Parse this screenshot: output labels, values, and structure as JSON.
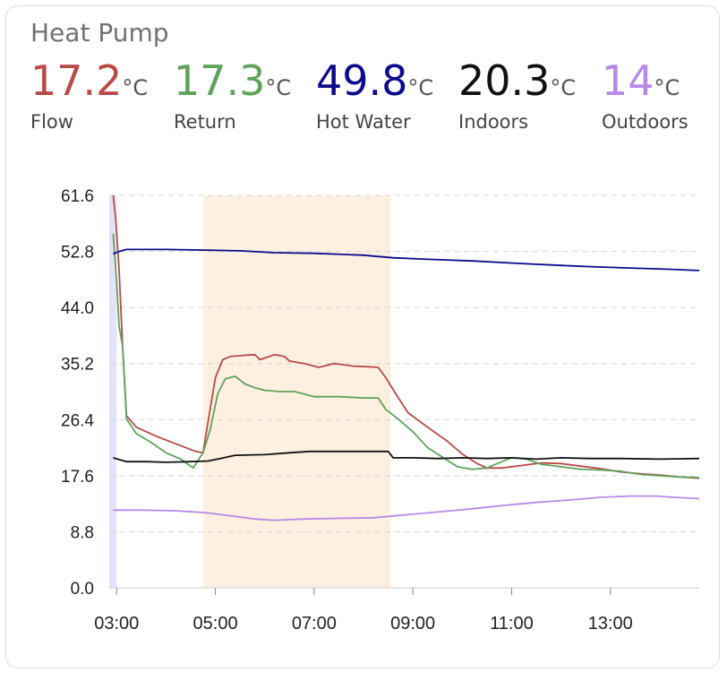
{
  "card": {
    "title": "Heat Pump"
  },
  "readings": [
    {
      "value": "17.2",
      "unit": "°C",
      "label": "Flow",
      "color": "#b94a48"
    },
    {
      "value": "17.3",
      "unit": "°C",
      "label": "Return",
      "color": "#5fa35b"
    },
    {
      "value": "49.8",
      "unit": "°C",
      "label": "Hot Water",
      "color": "#0b0b8c"
    },
    {
      "value": "20.3",
      "unit": "°C",
      "label": "Indoors",
      "color": "#111111"
    },
    {
      "value": "14",
      "unit": "°C",
      "label": "Outdoors",
      "color": "#b889ea"
    }
  ],
  "chart_data": {
    "type": "line",
    "xlabel": "",
    "ylabel": "",
    "x_range_hours": [
      2.85,
      14.8
    ],
    "ylim": [
      0,
      61.6
    ],
    "y_ticks": [
      "0.0",
      "8.8",
      "17.6",
      "26.4",
      "35.2",
      "44.0",
      "52.8",
      "61.6"
    ],
    "x_ticks": [
      {
        "label": "03:00",
        "hour": 3
      },
      {
        "label": "05:00",
        "hour": 5
      },
      {
        "label": "07:00",
        "hour": 7
      },
      {
        "label": "09:00",
        "hour": 9
      },
      {
        "label": "11:00",
        "hour": 11
      },
      {
        "label": "13:00",
        "hour": 13
      }
    ],
    "grid": "horizontal-dashed",
    "bands": [
      {
        "from_hour": 2.85,
        "to_hour": 3.0,
        "color": "#e3e3fb"
      },
      {
        "from_hour": 4.75,
        "to_hour": 8.55,
        "color": "#fdf0e1"
      }
    ],
    "series": [
      {
        "name": "Flow",
        "color": "#b94a48",
        "points": [
          [
            2.93,
            61.6
          ],
          [
            2.98,
            58
          ],
          [
            3.05,
            50
          ],
          [
            3.12,
            38
          ],
          [
            3.2,
            27
          ],
          [
            3.4,
            25.2
          ],
          [
            3.8,
            23.8
          ],
          [
            4.2,
            22.6
          ],
          [
            4.6,
            21.4
          ],
          [
            4.75,
            21.2
          ],
          [
            4.85,
            26
          ],
          [
            5.0,
            33
          ],
          [
            5.15,
            35.8
          ],
          [
            5.3,
            36.3
          ],
          [
            5.6,
            36.5
          ],
          [
            5.8,
            36.6
          ],
          [
            5.9,
            35.8
          ],
          [
            6.05,
            36.2
          ],
          [
            6.2,
            36.6
          ],
          [
            6.4,
            36.3
          ],
          [
            6.5,
            35.6
          ],
          [
            6.8,
            35.2
          ],
          [
            7.1,
            34.6
          ],
          [
            7.4,
            35.2
          ],
          [
            7.8,
            34.8
          ],
          [
            8.1,
            34.7
          ],
          [
            8.3,
            34.6
          ],
          [
            8.45,
            33
          ],
          [
            8.65,
            30.5
          ],
          [
            8.9,
            27.5
          ],
          [
            9.3,
            25.2
          ],
          [
            9.7,
            23
          ],
          [
            10.0,
            21
          ],
          [
            10.3,
            19.5
          ],
          [
            10.5,
            18.8
          ],
          [
            10.8,
            18.8
          ],
          [
            11.2,
            19.2
          ],
          [
            11.6,
            19.6
          ],
          [
            12.0,
            19.5
          ],
          [
            12.4,
            19.1
          ],
          [
            12.8,
            18.7
          ],
          [
            13.2,
            18.2
          ],
          [
            13.6,
            17.9
          ],
          [
            14.0,
            17.7
          ],
          [
            14.4,
            17.4
          ],
          [
            14.8,
            17.2
          ]
        ]
      },
      {
        "name": "Return",
        "color": "#5fa35b",
        "points": [
          [
            2.93,
            55.6
          ],
          [
            3.0,
            48
          ],
          [
            3.05,
            41
          ],
          [
            3.12,
            38
          ],
          [
            3.2,
            26.5
          ],
          [
            3.4,
            24.2
          ],
          [
            3.7,
            22.8
          ],
          [
            4.0,
            21.2
          ],
          [
            4.3,
            20.2
          ],
          [
            4.55,
            18.8
          ],
          [
            4.75,
            21.2
          ],
          [
            4.9,
            25
          ],
          [
            5.05,
            30.5
          ],
          [
            5.2,
            32.8
          ],
          [
            5.4,
            33.2
          ],
          [
            5.6,
            32
          ],
          [
            5.8,
            31.4
          ],
          [
            6.0,
            31
          ],
          [
            6.3,
            30.8
          ],
          [
            6.6,
            30.8
          ],
          [
            6.8,
            30.4
          ],
          [
            7.0,
            30
          ],
          [
            7.5,
            30
          ],
          [
            8.0,
            29.8
          ],
          [
            8.3,
            29.8
          ],
          [
            8.45,
            28
          ],
          [
            8.7,
            26.5
          ],
          [
            9.0,
            24.5
          ],
          [
            9.3,
            22
          ],
          [
            9.6,
            20.5
          ],
          [
            9.9,
            19
          ],
          [
            10.2,
            18.6
          ],
          [
            10.5,
            18.8
          ],
          [
            10.8,
            19.8
          ],
          [
            11.0,
            20.4
          ],
          [
            11.3,
            20.2
          ],
          [
            11.6,
            19.4
          ],
          [
            12.0,
            19
          ],
          [
            12.4,
            18.6
          ],
          [
            12.8,
            18.5
          ],
          [
            13.2,
            18.3
          ],
          [
            13.6,
            17.8
          ],
          [
            14.0,
            17.6
          ],
          [
            14.4,
            17.4
          ],
          [
            14.8,
            17.3
          ]
        ]
      },
      {
        "name": "Hot Water",
        "color": "#0b0b8c",
        "points": [
          [
            2.93,
            52.4
          ],
          [
            3.05,
            52.8
          ],
          [
            3.2,
            53.1
          ],
          [
            4.0,
            53.1
          ],
          [
            4.8,
            53
          ],
          [
            5.5,
            52.9
          ],
          [
            6.2,
            52.6
          ],
          [
            7.0,
            52.5
          ],
          [
            8.0,
            52.2
          ],
          [
            8.6,
            51.8
          ],
          [
            9.2,
            51.6
          ],
          [
            10.2,
            51.3
          ],
          [
            11.2,
            50.9
          ],
          [
            12.0,
            50.6
          ],
          [
            12.6,
            50.4
          ],
          [
            13.4,
            50.2
          ],
          [
            14.2,
            50
          ],
          [
            14.8,
            49.8
          ]
        ]
      },
      {
        "name": "Indoors",
        "color": "#111111",
        "points": [
          [
            2.93,
            20.4
          ],
          [
            3.2,
            19.8
          ],
          [
            3.6,
            19.8
          ],
          [
            4.0,
            19.7
          ],
          [
            4.5,
            19.8
          ],
          [
            4.85,
            19.9
          ],
          [
            5.1,
            20.3
          ],
          [
            5.4,
            20.8
          ],
          [
            6.0,
            20.9
          ],
          [
            6.5,
            21.2
          ],
          [
            6.9,
            21.4
          ],
          [
            7.5,
            21.4
          ],
          [
            8.0,
            21.4
          ],
          [
            8.5,
            21.4
          ],
          [
            8.6,
            20.4
          ],
          [
            9.0,
            20.4
          ],
          [
            9.5,
            20.3
          ],
          [
            10.0,
            20.4
          ],
          [
            10.5,
            20.3
          ],
          [
            11.0,
            20.4
          ],
          [
            11.5,
            20.2
          ],
          [
            12.0,
            20.4
          ],
          [
            12.6,
            20.3
          ],
          [
            13.2,
            20.3
          ],
          [
            14.0,
            20.2
          ],
          [
            14.8,
            20.3
          ]
        ]
      },
      {
        "name": "Outdoors",
        "color": "#b889ea",
        "points": [
          [
            2.93,
            12.2
          ],
          [
            3.5,
            12.2
          ],
          [
            4.2,
            12.1
          ],
          [
            4.8,
            11.8
          ],
          [
            5.2,
            11.4
          ],
          [
            5.8,
            10.8
          ],
          [
            6.2,
            10.6
          ],
          [
            6.8,
            10.8
          ],
          [
            7.5,
            10.9
          ],
          [
            8.2,
            11
          ],
          [
            8.8,
            11.4
          ],
          [
            9.5,
            11.9
          ],
          [
            10.2,
            12.4
          ],
          [
            10.8,
            12.9
          ],
          [
            11.5,
            13.4
          ],
          [
            12.2,
            13.8
          ],
          [
            12.8,
            14.2
          ],
          [
            13.4,
            14.4
          ],
          [
            13.9,
            14.4
          ],
          [
            14.3,
            14.2
          ],
          [
            14.8,
            14
          ]
        ]
      }
    ]
  }
}
